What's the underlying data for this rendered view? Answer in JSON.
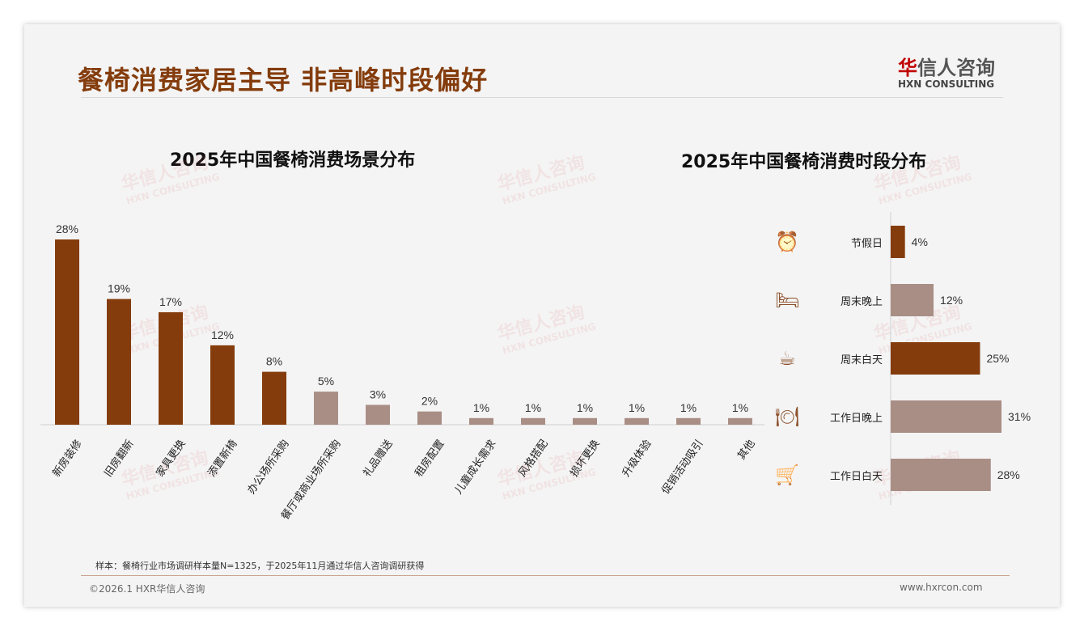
{
  "header": {
    "title": "餐椅消费家居主导 非高峰时段偏好",
    "logo_cn_red": "华",
    "logo_cn": "信人咨询",
    "logo_en": "HXN CONSULTING"
  },
  "watermark": {
    "cn": "华信人咨询",
    "en": "HXN CONSULTING"
  },
  "chart_data": [
    {
      "type": "bar",
      "title": "2025年中国餐椅消费场景分布",
      "categories": [
        "新房装修",
        "旧房翻新",
        "家具更换",
        "添置新椅",
        "办公场所采购",
        "餐厅或商业场所采购",
        "礼品赠送",
        "租房配置",
        "儿童成长需求",
        "风格搭配",
        "损坏更换",
        "升级体验",
        "促销活动吸引",
        "其他"
      ],
      "values": [
        28,
        19,
        17,
        12,
        8,
        5,
        3,
        2,
        1,
        1,
        1,
        1,
        1,
        1
      ],
      "labels": [
        "28%",
        "19%",
        "17%",
        "12%",
        "8%",
        "5%",
        "3%",
        "2%",
        "1%",
        "1%",
        "1%",
        "1%",
        "1%",
        "1%"
      ],
      "highlight_count": 5,
      "colors": {
        "dark": "#843c0c",
        "light": "#a98e85"
      },
      "ylim": [
        0,
        30
      ]
    },
    {
      "type": "bar",
      "orientation": "horizontal",
      "title": "2025年中国餐椅消费时段分布",
      "categories": [
        "节假日",
        "周末晚上",
        "周末白天",
        "工作日晚上",
        "工作日白天"
      ],
      "values": [
        4,
        12,
        25,
        31,
        28
      ],
      "labels": [
        "4%",
        "12%",
        "25%",
        "31%",
        "28%"
      ],
      "icons": [
        "alarm-clock-icon",
        "bed-icon",
        "coffee-cup-icon",
        "dining-plate-icon",
        "shopping-cart-icon"
      ],
      "highlight": [
        true,
        false,
        true,
        false,
        false
      ],
      "colors": {
        "dark": "#843c0c",
        "light": "#a98e85"
      },
      "xlim": [
        0,
        31
      ]
    }
  ],
  "footer": {
    "note": "样本：餐椅行业市场调研样本量N=1325，于2025年11月通过华信人咨询调研获得",
    "copyright": "©2026.1 HXR华信人咨询",
    "url": "www.hxrcon.com"
  }
}
